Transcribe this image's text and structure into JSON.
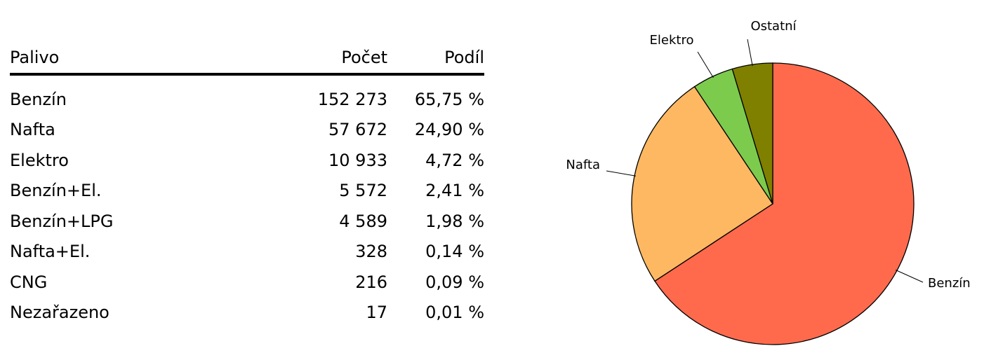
{
  "table": {
    "headers": [
      "Palivo",
      "Počet",
      "Podíl"
    ],
    "rows": [
      [
        "Benzín",
        "152 273",
        "65,75 %"
      ],
      [
        "Nafta",
        "57 672",
        "24,90 %"
      ],
      [
        "Elektro",
        "10 933",
        "4,72 %"
      ],
      [
        "Benzín+El.",
        "5 572",
        "2,41 %"
      ],
      [
        "Benzín+LPG",
        "4 589",
        "1,98 %"
      ],
      [
        "Nafta+El.",
        "328",
        "0,14 %"
      ],
      [
        "CNG",
        "216",
        "0,09 %"
      ],
      [
        "Nezařazeno",
        "17",
        "0,01 %"
      ]
    ]
  },
  "chart_data": {
    "type": "pie",
    "labels": [
      "Benzín",
      "Nafta",
      "Elektro",
      "Ostatní"
    ],
    "values": [
      65.75,
      24.9,
      4.72,
      4.63
    ],
    "colors": [
      "#ff6a4d",
      "#ffb862",
      "#7ccb4d",
      "#7f7f00"
    ],
    "start": "12 o'clock",
    "direction": "clockwise"
  }
}
